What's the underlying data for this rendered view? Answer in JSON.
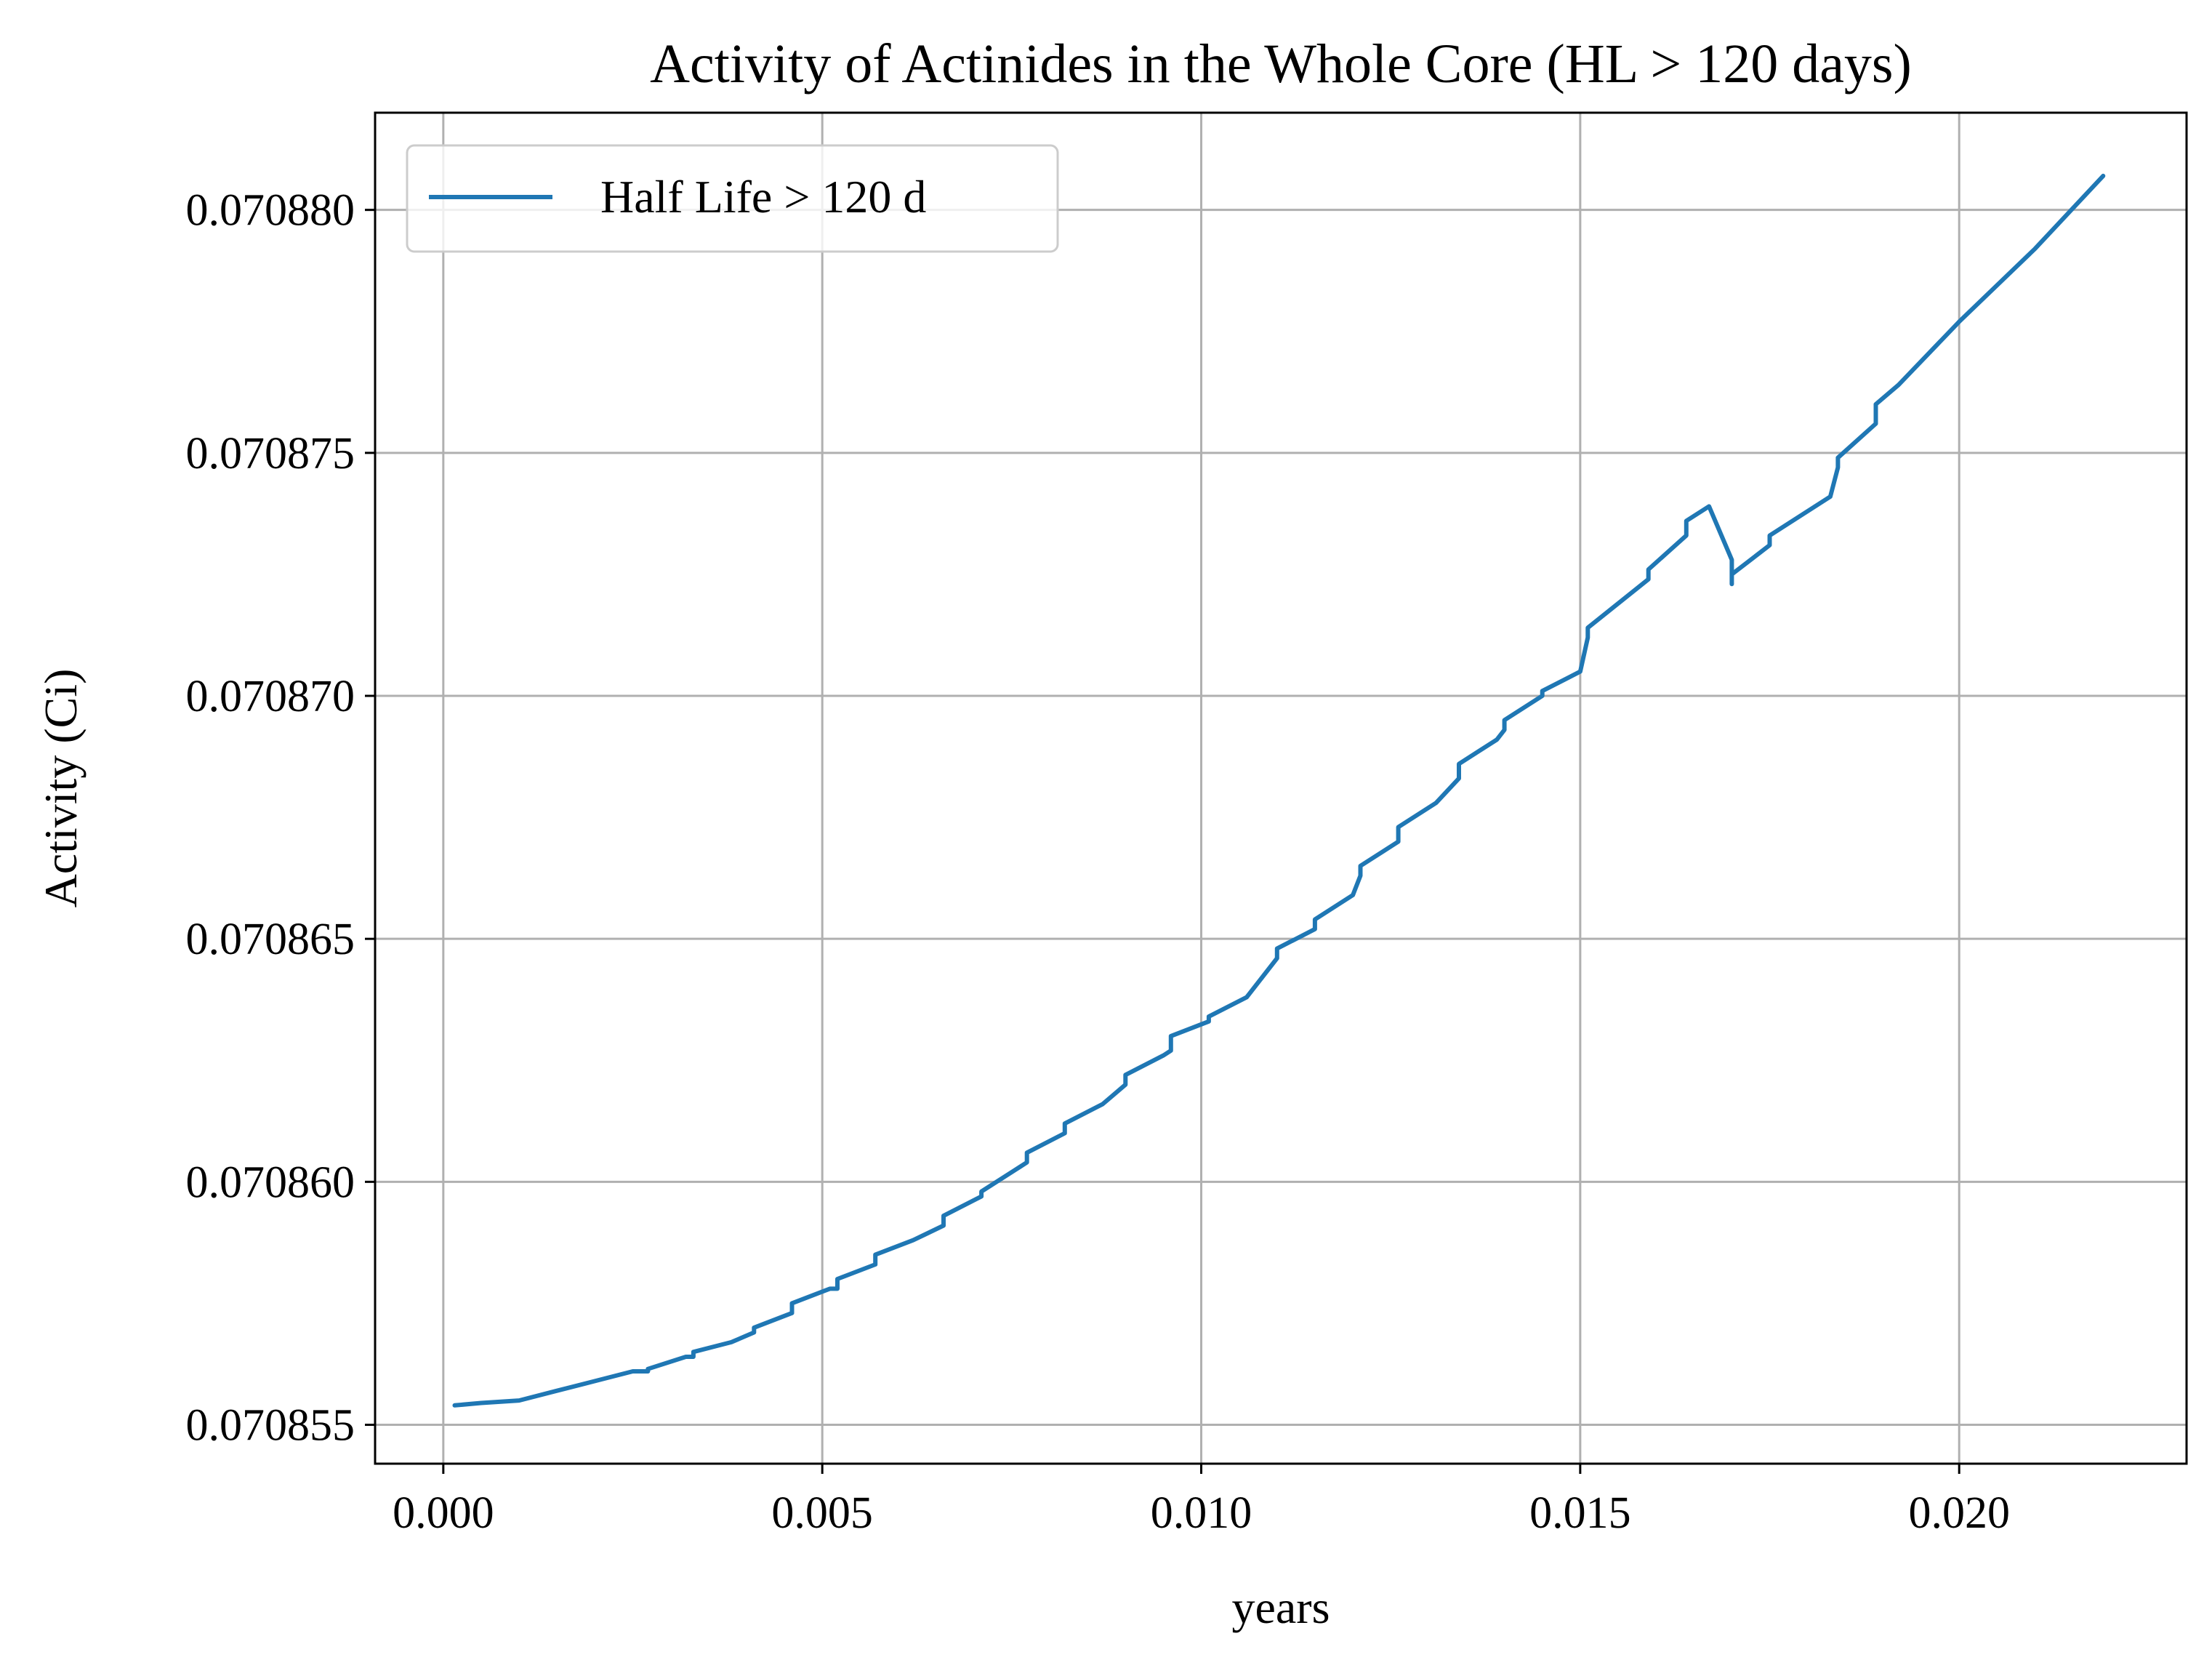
{
  "chart_data": {
    "type": "line",
    "title": "Activity of Actinides in the Whole Core (HL > 120 days)",
    "xlabel": "years",
    "ylabel": "Activity (Ci)",
    "xlim": [
      -0.0009,
      0.023
    ],
    "ylim": [
      0.0708542,
      0.070882
    ],
    "xticks": [
      0.0,
      0.005,
      0.01,
      0.015,
      0.02
    ],
    "xtick_labels": [
      "0.000",
      "0.005",
      "0.010",
      "0.015",
      "0.020"
    ],
    "yticks": [
      0.070855,
      0.07086,
      0.070865,
      0.07087,
      0.070875,
      0.07088
    ],
    "ytick_labels": [
      "0.070855",
      "0.070860",
      "0.070865",
      "0.070870",
      "0.070875",
      "0.070880"
    ],
    "grid": true,
    "legend_position": "top-left",
    "colors": {
      "series": "#1f77b4",
      "grid": "#b0b0b0",
      "axes": "#000000"
    },
    "series": [
      {
        "name": "Half Life > 120 d",
        "x": [
          0.00015,
          0.0005,
          0.001,
          0.0015,
          0.002,
          0.0025,
          0.0027,
          0.0027,
          0.0032,
          0.0033,
          0.0033,
          0.0038,
          0.0041,
          0.0041,
          0.0046,
          0.0046,
          0.0051,
          0.0052,
          0.0052,
          0.0057,
          0.0057,
          0.0062,
          0.0066,
          0.0066,
          0.0071,
          0.0071,
          0.0076,
          0.0077,
          0.0077,
          0.0082,
          0.0082,
          0.0087,
          0.009,
          0.009,
          0.0095,
          0.0096,
          0.0096,
          0.0101,
          0.0101,
          0.0106,
          0.011,
          0.011,
          0.0115,
          0.0115,
          0.012,
          0.0121,
          0.0121,
          0.0126,
          0.0126,
          0.0131,
          0.0134,
          0.0134,
          0.0139,
          0.014,
          0.014,
          0.0145,
          0.0145,
          0.015,
          0.0151,
          0.0151,
          0.0159,
          0.0159,
          0.0164,
          0.0164,
          0.0167,
          0.017,
          0.017,
          0.017,
          0.0175,
          0.0175,
          0.0183,
          0.0184,
          0.0184,
          0.0189,
          0.0189,
          0.0192,
          0.02,
          0.021,
          0.0219
        ],
        "y": [
          0.0708554,
          0.07085545,
          0.0708555,
          0.0708557,
          0.0708559,
          0.0708561,
          0.0708561,
          0.07085615,
          0.0708564,
          0.0708564,
          0.0708565,
          0.0708567,
          0.0708569,
          0.070857,
          0.0708573,
          0.0708575,
          0.0708578,
          0.0708578,
          0.070858,
          0.0708583,
          0.0708585,
          0.0708588,
          0.0708591,
          0.0708593,
          0.0708597,
          0.0708598,
          0.0708603,
          0.0708604,
          0.0708606,
          0.070861,
          0.0708612,
          0.0708616,
          0.070862,
          0.0708622,
          0.0708626,
          0.0708627,
          0.070863,
          0.0708633,
          0.0708634,
          0.0708638,
          0.0708646,
          0.0708648,
          0.0708652,
          0.0708654,
          0.0708659,
          0.0708663,
          0.0708665,
          0.070867,
          0.0708673,
          0.0708678,
          0.0708683,
          0.0708686,
          0.0708691,
          0.0708693,
          0.0708695,
          0.07087,
          0.0708701,
          0.0708705,
          0.0708712,
          0.0708714,
          0.0708724,
          0.0708726,
          0.0708733,
          0.0708736,
          0.0708739,
          0.0708728,
          0.0708723,
          0.0708725,
          0.0708731,
          0.0708733,
          0.0708741,
          0.0708747,
          0.0708749,
          0.0708756,
          0.070876,
          0.0708764,
          0.0708777,
          0.0708792,
          0.0708807
        ]
      }
    ]
  }
}
